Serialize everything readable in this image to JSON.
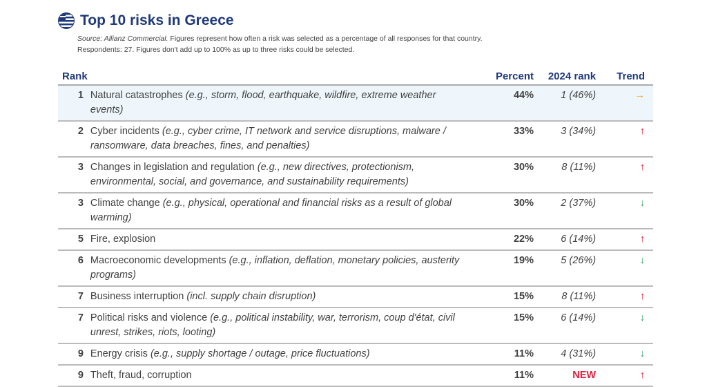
{
  "title": "Top 10 risks in Greece",
  "note": {
    "source": "Source: Allianz Commercial.",
    "line1": " Figures represent how often a risk was selected as a percentage of all responses for that country.",
    "line2": "Respondents: 27. Figures don't add up to 100% as up to three risks could be selected."
  },
  "headers": {
    "rank": "Rank",
    "percent": "Percent",
    "rank2024": "2024 rank",
    "trend": "Trend"
  },
  "colors": {
    "up": "#e11d3c",
    "down": "#3aa56b",
    "same": "#f0a020"
  },
  "rows": [
    {
      "rank": "1",
      "name": "Natural catastrophes",
      "detail": " (e.g., storm, flood, earthquake, wildfire, extreme weather events)",
      "percent": "44%",
      "prev": "1 (46%)",
      "trend": "→",
      "trend_dir": "same"
    },
    {
      "rank": "2",
      "name": "Cyber incidents",
      "detail": " (e.g., cyber crime, IT network and service disruptions, malware / ransomware, data breaches, fines, and penalties)",
      "percent": "33%",
      "prev": "3 (34%)",
      "trend": "↑",
      "trend_dir": "up"
    },
    {
      "rank": "3",
      "name": "Changes in legislation and regulation",
      "detail": " (e.g., new directives, protectionism, environmental, social, and governance, and sustainability requirements)",
      "percent": "30%",
      "prev": "8 (11%)",
      "trend": "↑",
      "trend_dir": "up"
    },
    {
      "rank": "3",
      "name": "Climate change",
      "detail": " (e.g., physical, operational and financial risks as a result of global warming)",
      "percent": "30%",
      "prev": "2 (37%)",
      "trend": "↓",
      "trend_dir": "down"
    },
    {
      "rank": "5",
      "name": "Fire, explosion",
      "detail": "",
      "percent": "22%",
      "prev": "6 (14%)",
      "trend": "↑",
      "trend_dir": "up"
    },
    {
      "rank": "6",
      "name": "Macroeconomic developments",
      "detail": " (e.g., inflation, deflation, monetary policies, austerity programs)",
      "percent": "19%",
      "prev": "5 (26%)",
      "trend": "↓",
      "trend_dir": "down"
    },
    {
      "rank": "7",
      "name": "Business interruption",
      "detail": " (incl. supply chain disruption)",
      "percent": "15%",
      "prev": "8 (11%)",
      "trend": "↑",
      "trend_dir": "up"
    },
    {
      "rank": "7",
      "name": "Political risks and violence",
      "detail": " (e.g., political instability, war, terrorism, coup d'état, civil unrest, strikes, riots, looting)",
      "percent": "15%",
      "prev": "6 (14%)",
      "trend": "↓",
      "trend_dir": "down"
    },
    {
      "rank": "9",
      "name": "Energy crisis",
      "detail": " (e.g., supply shortage / outage, price fluctuations)",
      "percent": "11%",
      "prev": "4 (31%)",
      "trend": "↓",
      "trend_dir": "down"
    },
    {
      "rank": "9",
      "name": "Theft, fraud, corruption",
      "detail": "",
      "percent": "11%",
      "prev": "NEW",
      "trend": "↑",
      "trend_dir": "up"
    }
  ]
}
